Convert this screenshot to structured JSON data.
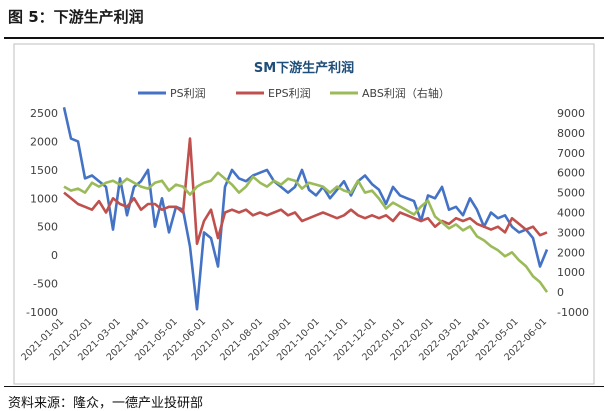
{
  "figure_label": "图 5：下游生产利润",
  "source_text": "资料来源：隆众，一德产业投研部",
  "chart_data": {
    "type": "line",
    "title": "SM下游生产利润",
    "xlabel": "",
    "ylabel": "",
    "x_tick_labels": [
      "2021-01-01",
      "2021-02-01",
      "2021-03-01",
      "2021-04-01",
      "2021-05-01",
      "2021-06-01",
      "2021-07-01",
      "2021-08-01",
      "2021-09-01",
      "2021-10-01",
      "2021-11-01",
      "2021-12-01",
      "2022-01-01",
      "2022-02-01",
      "2022-03-01",
      "2022-04-01",
      "2022-05-01",
      "2022-06-01"
    ],
    "ylim_left": [
      -1000,
      2500
    ],
    "left_ticks": [
      "2500",
      "2000",
      "1500",
      "1000",
      "500",
      "0",
      "-500",
      "-1000"
    ],
    "ylim_right": [
      -1000,
      9000
    ],
    "right_ticks": [
      "9000",
      "8000",
      "7000",
      "6000",
      "5000",
      "4000",
      "3000",
      "2000",
      "1000",
      "0",
      "-1000"
    ],
    "legend_position": "top",
    "grid": "none",
    "series": [
      {
        "name": "PS利润",
        "axis": "left",
        "color": "#4472c4",
        "points": [
          [
            0,
            2600
          ],
          [
            1,
            2050
          ],
          [
            2,
            2000
          ],
          [
            3,
            1350
          ],
          [
            4,
            1400
          ],
          [
            5,
            1300
          ],
          [
            6,
            1200
          ],
          [
            7,
            450
          ],
          [
            8,
            1350
          ],
          [
            9,
            700
          ],
          [
            10,
            1200
          ],
          [
            11,
            1300
          ],
          [
            12,
            1500
          ],
          [
            13,
            500
          ],
          [
            14,
            1000
          ],
          [
            15,
            400
          ],
          [
            16,
            850
          ],
          [
            17,
            800
          ],
          [
            18,
            150
          ],
          [
            19,
            -950
          ],
          [
            20,
            400
          ],
          [
            21,
            300
          ],
          [
            22,
            -200
          ],
          [
            23,
            1200
          ],
          [
            24,
            1500
          ],
          [
            25,
            1350
          ],
          [
            26,
            1300
          ],
          [
            27,
            1400
          ],
          [
            28,
            1450
          ],
          [
            29,
            1500
          ],
          [
            30,
            1300
          ],
          [
            31,
            1200
          ],
          [
            32,
            1100
          ],
          [
            33,
            1200
          ],
          [
            34,
            1500
          ],
          [
            35,
            1150
          ],
          [
            36,
            1050
          ],
          [
            37,
            1200
          ],
          [
            38,
            1000
          ],
          [
            39,
            1150
          ],
          [
            40,
            1300
          ],
          [
            41,
            1050
          ],
          [
            42,
            1300
          ],
          [
            43,
            1400
          ],
          [
            44,
            1250
          ],
          [
            45,
            1150
          ],
          [
            46,
            900
          ],
          [
            47,
            1200
          ],
          [
            48,
            1050
          ],
          [
            49,
            1000
          ],
          [
            50,
            950
          ],
          [
            51,
            600
          ],
          [
            52,
            1050
          ],
          [
            53,
            1000
          ],
          [
            54,
            1200
          ],
          [
            55,
            800
          ],
          [
            56,
            850
          ],
          [
            57,
            700
          ],
          [
            58,
            1000
          ],
          [
            59,
            800
          ],
          [
            60,
            500
          ],
          [
            61,
            750
          ],
          [
            62,
            650
          ],
          [
            63,
            700
          ],
          [
            64,
            500
          ],
          [
            65,
            400
          ],
          [
            66,
            450
          ],
          [
            67,
            300
          ],
          [
            68,
            -200
          ],
          [
            69,
            100
          ]
        ]
      },
      {
        "name": "EPS利润",
        "axis": "left",
        "color": "#c0504d",
        "points": [
          [
            0,
            1100
          ],
          [
            1,
            1000
          ],
          [
            2,
            900
          ],
          [
            3,
            850
          ],
          [
            4,
            800
          ],
          [
            5,
            950
          ],
          [
            6,
            750
          ],
          [
            7,
            1000
          ],
          [
            8,
            900
          ],
          [
            9,
            850
          ],
          [
            10,
            1000
          ],
          [
            11,
            800
          ],
          [
            12,
            900
          ],
          [
            13,
            900
          ],
          [
            14,
            800
          ],
          [
            15,
            850
          ],
          [
            16,
            850
          ],
          [
            17,
            750
          ],
          [
            18,
            2050
          ],
          [
            19,
            200
          ],
          [
            20,
            600
          ],
          [
            21,
            800
          ],
          [
            22,
            300
          ],
          [
            23,
            750
          ],
          [
            24,
            800
          ],
          [
            25,
            750
          ],
          [
            26,
            800
          ],
          [
            27,
            700
          ],
          [
            28,
            750
          ],
          [
            29,
            700
          ],
          [
            30,
            750
          ],
          [
            31,
            800
          ],
          [
            32,
            700
          ],
          [
            33,
            750
          ],
          [
            34,
            600
          ],
          [
            35,
            650
          ],
          [
            36,
            700
          ],
          [
            37,
            750
          ],
          [
            38,
            700
          ],
          [
            39,
            650
          ],
          [
            40,
            700
          ],
          [
            41,
            800
          ],
          [
            42,
            700
          ],
          [
            43,
            650
          ],
          [
            44,
            700
          ],
          [
            45,
            650
          ],
          [
            46,
            700
          ],
          [
            47,
            600
          ],
          [
            48,
            750
          ],
          [
            49,
            700
          ],
          [
            50,
            650
          ],
          [
            51,
            600
          ],
          [
            52,
            650
          ],
          [
            53,
            500
          ],
          [
            54,
            600
          ],
          [
            55,
            550
          ],
          [
            56,
            650
          ],
          [
            57,
            600
          ],
          [
            58,
            650
          ],
          [
            59,
            550
          ],
          [
            60,
            500
          ],
          [
            61,
            450
          ],
          [
            62,
            500
          ],
          [
            63,
            400
          ],
          [
            64,
            650
          ],
          [
            65,
            550
          ],
          [
            66,
            450
          ],
          [
            67,
            500
          ],
          [
            68,
            350
          ],
          [
            69,
            400
          ]
        ]
      },
      {
        "name": "ABS利润（右轴）",
        "axis": "right",
        "color": "#9bbb59",
        "points": [
          [
            0,
            5300
          ],
          [
            1,
            5100
          ],
          [
            2,
            5200
          ],
          [
            3,
            5000
          ],
          [
            4,
            5500
          ],
          [
            5,
            5300
          ],
          [
            6,
            5500
          ],
          [
            7,
            5600
          ],
          [
            8,
            5400
          ],
          [
            9,
            5700
          ],
          [
            10,
            5500
          ],
          [
            11,
            5300
          ],
          [
            12,
            5200
          ],
          [
            13,
            5500
          ],
          [
            14,
            5600
          ],
          [
            15,
            5100
          ],
          [
            16,
            5400
          ],
          [
            17,
            5300
          ],
          [
            18,
            4900
          ],
          [
            19,
            5300
          ],
          [
            20,
            5500
          ],
          [
            21,
            5600
          ],
          [
            22,
            6000
          ],
          [
            23,
            5700
          ],
          [
            24,
            5400
          ],
          [
            25,
            5000
          ],
          [
            26,
            5300
          ],
          [
            27,
            5800
          ],
          [
            28,
            5500
          ],
          [
            29,
            5300
          ],
          [
            30,
            5600
          ],
          [
            31,
            5400
          ],
          [
            32,
            5700
          ],
          [
            33,
            5600
          ],
          [
            34,
            5200
          ],
          [
            35,
            5500
          ],
          [
            36,
            5400
          ],
          [
            37,
            5300
          ],
          [
            38,
            5000
          ],
          [
            39,
            5300
          ],
          [
            40,
            5100
          ],
          [
            41,
            5000
          ],
          [
            42,
            5600
          ],
          [
            43,
            5000
          ],
          [
            44,
            5100
          ],
          [
            45,
            4700
          ],
          [
            46,
            4200
          ],
          [
            47,
            4500
          ],
          [
            48,
            4300
          ],
          [
            49,
            4100
          ],
          [
            50,
            3900
          ],
          [
            51,
            4300
          ],
          [
            52,
            4600
          ],
          [
            53,
            3800
          ],
          [
            54,
            3500
          ],
          [
            55,
            3200
          ],
          [
            56,
            3400
          ],
          [
            57,
            3100
          ],
          [
            58,
            3300
          ],
          [
            59,
            2800
          ],
          [
            60,
            2600
          ],
          [
            61,
            2300
          ],
          [
            62,
            2100
          ],
          [
            63,
            1800
          ],
          [
            64,
            2000
          ],
          [
            65,
            1600
          ],
          [
            66,
            1300
          ],
          [
            67,
            800
          ],
          [
            68,
            500
          ],
          [
            69,
            0
          ]
        ]
      }
    ]
  }
}
